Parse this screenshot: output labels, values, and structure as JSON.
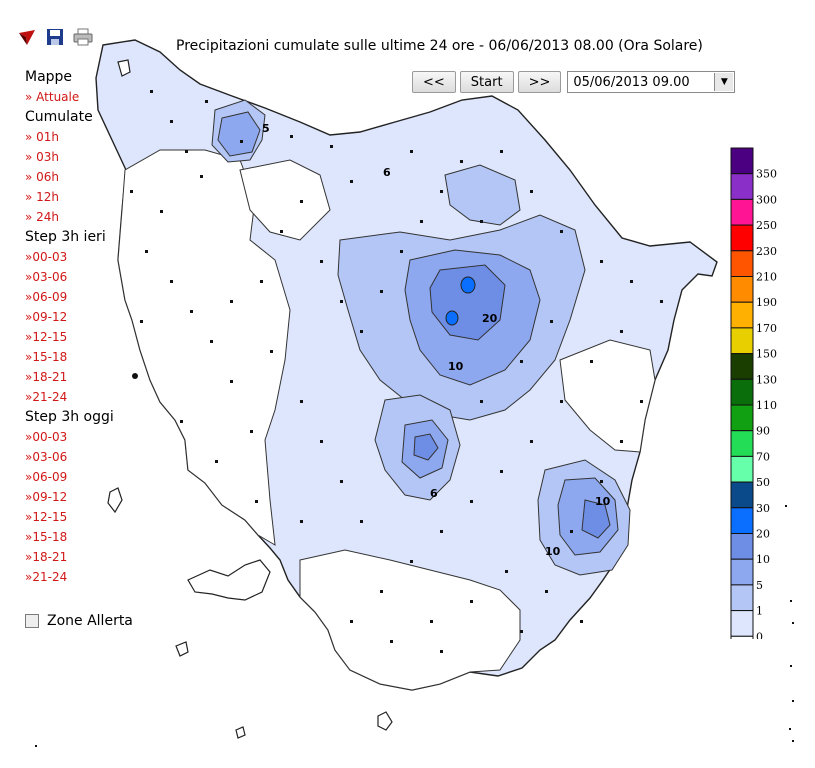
{
  "toolbar": {
    "icons": [
      "arrow-icon",
      "save-icon",
      "print-icon"
    ]
  },
  "title": "Precipitazioni cumulate sulle ultime 24 ore - 06/06/2013 08.00 (Ora Solare)",
  "nav": {
    "prev": "<<",
    "start": "Start",
    "next": ">>",
    "datetime": "05/06/2013 09.00"
  },
  "sidebar": {
    "mappe": "Mappe",
    "attuale": "» Attuale",
    "cumulate": "Cumulate",
    "cumulate_items": [
      "» 01h",
      "» 03h",
      "» 06h",
      "» 12h",
      "» 24h"
    ],
    "ieri": "Step 3h ieri",
    "ieri_items": [
      "»00-03",
      "»03-06",
      "»06-09",
      "»09-12",
      "»12-15",
      "»15-18",
      "»18-21",
      "»21-24"
    ],
    "oggi": "Step 3h oggi",
    "oggi_items": [
      "»00-03",
      "»03-06",
      "»06-09",
      "»09-12",
      "»12-15",
      "»15-18",
      "»18-21",
      "»21-24"
    ]
  },
  "zone_allerta": "Zone Allerta",
  "legend": {
    "labels": [
      "350",
      "300",
      "250",
      "230",
      "210",
      "190",
      "170",
      "150",
      "130",
      "110",
      "90",
      "70",
      "50",
      "30",
      "20",
      "10",
      "5",
      "1",
      "0"
    ],
    "colors": [
      "#4b0082",
      "#8b2fc9",
      "#ff1493",
      "#ff0000",
      "#ff5500",
      "#ff8c00",
      "#ffb000",
      "#e8d000",
      "#1a3d00",
      "#0a6e0a",
      "#11a011",
      "#22dd55",
      "#66ffaa",
      "#0a4a8a",
      "#0a6eff",
      "#6e8ee6",
      "#8ea8f0",
      "#b4c6f5",
      "#dde6fc",
      "#ffffff"
    ]
  },
  "map": {
    "contour_labels": [
      "5",
      "6",
      "10",
      "20",
      "10",
      "6",
      "10"
    ],
    "colors": {
      "c1": "#dde6fc",
      "c5": "#b4c6f5",
      "c10": "#8ea8f0",
      "c20": "#6e8ee6",
      "c30": "#0a6eff"
    }
  }
}
